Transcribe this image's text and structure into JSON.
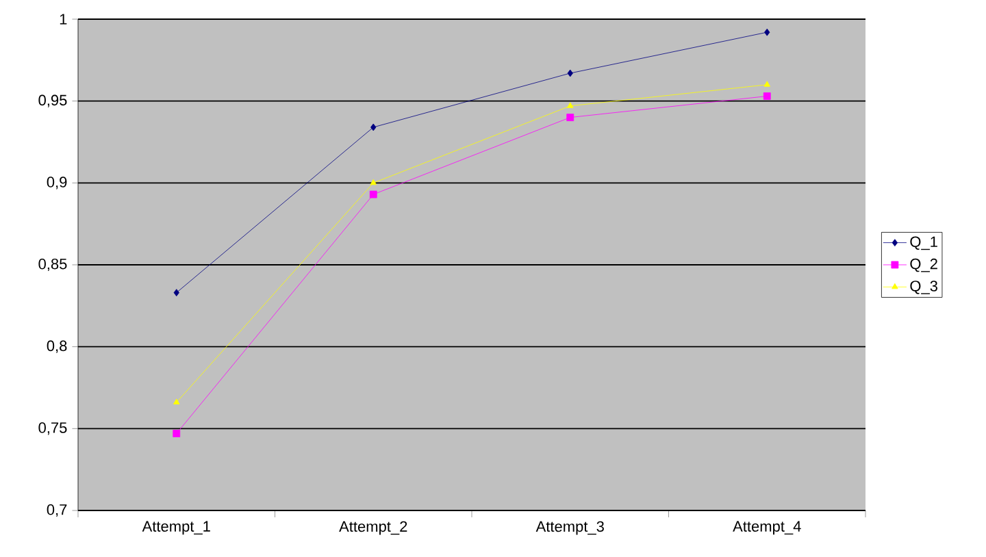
{
  "chart_data": {
    "type": "line",
    "categories": [
      "Attempt_1",
      "Attempt_2",
      "Attempt_3",
      "Attempt_4"
    ],
    "series": [
      {
        "name": "Q_1",
        "color": "#000080",
        "marker": "diamond",
        "values": [
          0.833,
          0.934,
          0.967,
          0.992
        ]
      },
      {
        "name": "Q_2",
        "color": "#ff00ff",
        "marker": "square",
        "values": [
          0.747,
          0.893,
          0.94,
          0.953
        ]
      },
      {
        "name": "Q_3",
        "color": "#ffff00",
        "marker": "triangle",
        "values": [
          0.766,
          0.9,
          0.947,
          0.96
        ]
      }
    ],
    "ylim": [
      0.7,
      1
    ],
    "yticks": [
      {
        "value": 0.7,
        "label": "0,7"
      },
      {
        "value": 0.75,
        "label": "0,75"
      },
      {
        "value": 0.8,
        "label": "0,8"
      },
      {
        "value": 0.85,
        "label": "0,85"
      },
      {
        "value": 0.9,
        "label": "0,9"
      },
      {
        "value": 0.95,
        "label": "0,95"
      },
      {
        "value": 1,
        "label": "1"
      }
    ],
    "grid": "y",
    "legend": "right",
    "line_style": "solid"
  }
}
